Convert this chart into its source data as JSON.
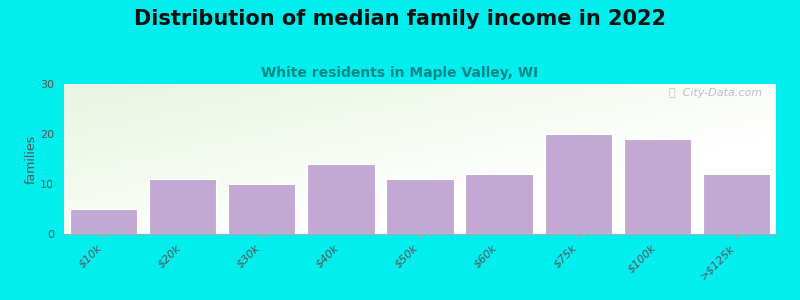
{
  "title": "Distribution of median family income in 2022",
  "subtitle": "White residents in Maple Valley, WI",
  "ylabel": "families",
  "categories": [
    "$10k",
    "$20k",
    "$30k",
    "$40k",
    "$50k",
    "$60k",
    "$75k",
    "$100k",
    ">$125k"
  ],
  "values": [
    5,
    11,
    10,
    14,
    11,
    12,
    20,
    19,
    12
  ],
  "bar_color": "#c4a8d4",
  "bar_edgecolor": "#ffffff",
  "ylim": [
    0,
    30
  ],
  "yticks": [
    0,
    10,
    20,
    30
  ],
  "background_color": "#00EEEE",
  "plot_bg_topleft": "#e8f5e0",
  "plot_bg_right": "#f8f8f8",
  "title_fontsize": 15,
  "subtitle_fontsize": 10,
  "subtitle_color": "#008888",
  "ylabel_fontsize": 9,
  "tick_fontsize": 8,
  "watermark": "ⓘ  City-Data.com"
}
